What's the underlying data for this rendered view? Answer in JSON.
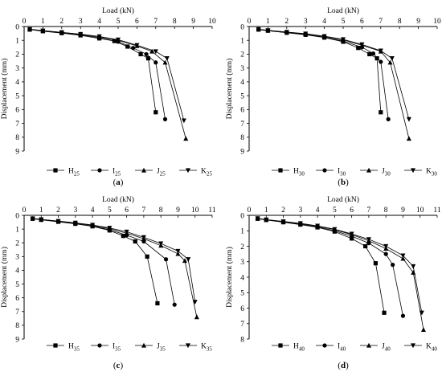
{
  "chart_data": [
    {
      "type": "line",
      "panel_label": "(a)",
      "xlabel": "Load (kN)",
      "ylabel": "Displacement (mm)",
      "x_axis_position": "top",
      "y_inverted": true,
      "xlim": [
        0,
        10
      ],
      "ylim": [
        0,
        9
      ],
      "xticks": [
        0,
        1,
        2,
        3,
        4,
        5,
        6,
        7,
        8,
        9,
        10
      ],
      "yticks": [
        0,
        1,
        2,
        3,
        4,
        5,
        6,
        7,
        8,
        9
      ],
      "legend_position": "bottom",
      "series": [
        {
          "name": "H",
          "subscript": "25",
          "marker": "square",
          "points": [
            [
              0.3,
              0.22
            ],
            [
              1.0,
              0.34
            ],
            [
              2.0,
              0.48
            ],
            [
              3.0,
              0.64
            ],
            [
              4.0,
              0.86
            ],
            [
              4.8,
              1.05
            ],
            [
              5.5,
              1.45
            ],
            [
              6.2,
              2.0
            ],
            [
              6.6,
              2.3
            ],
            [
              7.0,
              6.2
            ]
          ]
        },
        {
          "name": "I",
          "subscript": "25",
          "marker": "circle",
          "points": [
            [
              0.3,
              0.22
            ],
            [
              1.0,
              0.33
            ],
            [
              2.0,
              0.46
            ],
            [
              3.0,
              0.6
            ],
            [
              4.0,
              0.8
            ],
            [
              5.0,
              1.1
            ],
            [
              5.8,
              1.55
            ],
            [
              6.5,
              2.0
            ],
            [
              7.0,
              2.6
            ],
            [
              7.5,
              6.7
            ]
          ]
        },
        {
          "name": "J",
          "subscript": "25",
          "marker": "triangle-up",
          "points": [
            [
              0.3,
              0.2
            ],
            [
              1.0,
              0.3
            ],
            [
              2.0,
              0.43
            ],
            [
              3.0,
              0.56
            ],
            [
              4.0,
              0.74
            ],
            [
              5.0,
              1.0
            ],
            [
              6.0,
              1.4
            ],
            [
              6.8,
              1.8
            ],
            [
              7.5,
              2.6
            ],
            [
              8.6,
              8.1
            ]
          ]
        },
        {
          "name": "K",
          "subscript": "25",
          "marker": "triangle-down",
          "points": [
            [
              0.3,
              0.2
            ],
            [
              1.0,
              0.3
            ],
            [
              2.0,
              0.42
            ],
            [
              3.0,
              0.55
            ],
            [
              4.0,
              0.72
            ],
            [
              5.0,
              0.95
            ],
            [
              6.0,
              1.35
            ],
            [
              7.0,
              1.8
            ],
            [
              7.6,
              2.3
            ],
            [
              8.5,
              6.8
            ]
          ]
        }
      ]
    },
    {
      "type": "line",
      "panel_label": "(b)",
      "xlabel": "Load (kN)",
      "ylabel": "Displacement (mm)",
      "x_axis_position": "top",
      "y_inverted": true,
      "xlim": [
        0,
        10
      ],
      "ylim": [
        0,
        9
      ],
      "xticks": [
        0,
        1,
        2,
        3,
        4,
        5,
        6,
        7,
        8,
        9,
        10
      ],
      "yticks": [
        0,
        1,
        2,
        3,
        4,
        5,
        6,
        7,
        8,
        9
      ],
      "legend_position": "bottom",
      "series": [
        {
          "name": "H",
          "subscript": "30",
          "marker": "square",
          "points": [
            [
              0.5,
              0.22
            ],
            [
              1.0,
              0.3
            ],
            [
              2.0,
              0.45
            ],
            [
              3.0,
              0.6
            ],
            [
              4.0,
              0.8
            ],
            [
              5.0,
              1.1
            ],
            [
              5.8,
              1.55
            ],
            [
              6.4,
              2.0
            ],
            [
              6.8,
              2.3
            ],
            [
              7.0,
              6.2
            ]
          ]
        },
        {
          "name": "I",
          "subscript": "30",
          "marker": "circle",
          "points": [
            [
              0.5,
              0.22
            ],
            [
              1.0,
              0.3
            ],
            [
              2.0,
              0.44
            ],
            [
              3.0,
              0.58
            ],
            [
              4.0,
              0.77
            ],
            [
              5.0,
              1.05
            ],
            [
              6.0,
              1.5
            ],
            [
              6.6,
              1.95
            ],
            [
              7.0,
              2.55
            ],
            [
              7.4,
              6.7
            ]
          ]
        },
        {
          "name": "J",
          "subscript": "30",
          "marker": "triangle-up",
          "points": [
            [
              0.5,
              0.2
            ],
            [
              1.0,
              0.28
            ],
            [
              2.0,
              0.41
            ],
            [
              3.0,
              0.54
            ],
            [
              4.0,
              0.72
            ],
            [
              5.0,
              0.97
            ],
            [
              6.0,
              1.35
            ],
            [
              7.0,
              1.8
            ],
            [
              7.5,
              2.6
            ],
            [
              8.5,
              8.1
            ]
          ]
        },
        {
          "name": "K",
          "subscript": "30",
          "marker": "triangle-down",
          "points": [
            [
              0.5,
              0.2
            ],
            [
              1.0,
              0.28
            ],
            [
              2.0,
              0.4
            ],
            [
              3.0,
              0.52
            ],
            [
              4.0,
              0.7
            ],
            [
              5.0,
              0.93
            ],
            [
              6.0,
              1.3
            ],
            [
              7.0,
              1.75
            ],
            [
              7.6,
              2.3
            ],
            [
              8.5,
              6.7
            ]
          ]
        }
      ]
    },
    {
      "type": "line",
      "panel_label": "(c)",
      "xlabel": "Load (kN)",
      "ylabel": "Displacement (mm)",
      "x_axis_position": "top",
      "y_inverted": true,
      "xlim": [
        0,
        11
      ],
      "ylim": [
        0,
        9
      ],
      "xticks": [
        0,
        1,
        2,
        3,
        4,
        5,
        6,
        7,
        8,
        9,
        10,
        11
      ],
      "yticks": [
        0,
        1,
        2,
        3,
        4,
        5,
        6,
        7,
        8,
        9
      ],
      "legend_position": "bottom",
      "series": [
        {
          "name": "H",
          "subscript": "35",
          "marker": "square",
          "points": [
            [
              0.5,
              0.25
            ],
            [
              1.0,
              0.33
            ],
            [
              2.0,
              0.47
            ],
            [
              3.0,
              0.62
            ],
            [
              4.0,
              0.8
            ],
            [
              5.0,
              1.1
            ],
            [
              5.8,
              1.5
            ],
            [
              6.5,
              1.9
            ],
            [
              7.2,
              3.0
            ],
            [
              7.8,
              6.4
            ]
          ]
        },
        {
          "name": "I",
          "subscript": "35",
          "marker": "circle",
          "points": [
            [
              0.5,
              0.25
            ],
            [
              1.0,
              0.32
            ],
            [
              2.0,
              0.45
            ],
            [
              3.0,
              0.6
            ],
            [
              4.0,
              0.78
            ],
            [
              5.0,
              1.05
            ],
            [
              6.0,
              1.45
            ],
            [
              7.0,
              1.9
            ],
            [
              8.3,
              3.2
            ],
            [
              8.8,
              6.5
            ]
          ]
        },
        {
          "name": "J",
          "subscript": "35",
          "marker": "triangle-up",
          "points": [
            [
              0.5,
              0.23
            ],
            [
              1.0,
              0.3
            ],
            [
              2.0,
              0.43
            ],
            [
              3.0,
              0.56
            ],
            [
              4.0,
              0.73
            ],
            [
              5.0,
              0.97
            ],
            [
              6.0,
              1.3
            ],
            [
              7.0,
              1.7
            ],
            [
              8.0,
              2.2
            ],
            [
              9.0,
              2.8
            ],
            [
              9.4,
              3.3
            ],
            [
              10.1,
              7.4
            ]
          ]
        },
        {
          "name": "K",
          "subscript": "35",
          "marker": "triangle-down",
          "points": [
            [
              0.5,
              0.23
            ],
            [
              1.0,
              0.3
            ],
            [
              2.0,
              0.42
            ],
            [
              3.0,
              0.55
            ],
            [
              4.0,
              0.7
            ],
            [
              5.0,
              0.92
            ],
            [
              6.0,
              1.2
            ],
            [
              7.0,
              1.6
            ],
            [
              8.0,
              2.05
            ],
            [
              9.0,
              2.6
            ],
            [
              9.6,
              3.2
            ],
            [
              10.0,
              6.3
            ]
          ]
        }
      ]
    },
    {
      "type": "line",
      "panel_label": "(d)",
      "xlabel": "Load (kN)",
      "ylabel": "Displacement (mm)",
      "x_axis_position": "top",
      "y_inverted": true,
      "xlim": [
        0,
        11
      ],
      "ylim": [
        0,
        8
      ],
      "xticks": [
        0,
        1,
        2,
        3,
        4,
        5,
        6,
        7,
        8,
        9,
        10,
        11
      ],
      "yticks": [
        0,
        1,
        2,
        3,
        4,
        5,
        6,
        7,
        8
      ],
      "legend_position": "bottom",
      "series": [
        {
          "name": "H",
          "subscript": "40",
          "marker": "square",
          "points": [
            [
              0.5,
              0.22
            ],
            [
              1.0,
              0.3
            ],
            [
              2.0,
              0.45
            ],
            [
              3.0,
              0.6
            ],
            [
              4.0,
              0.78
            ],
            [
              5.0,
              1.05
            ],
            [
              6.0,
              1.5
            ],
            [
              6.8,
              2.0
            ],
            [
              7.4,
              3.1
            ],
            [
              7.9,
              6.3
            ]
          ]
        },
        {
          "name": "I",
          "subscript": "40",
          "marker": "circle",
          "points": [
            [
              0.5,
              0.22
            ],
            [
              1.0,
              0.3
            ],
            [
              2.0,
              0.43
            ],
            [
              3.0,
              0.58
            ],
            [
              4.0,
              0.75
            ],
            [
              5.0,
              1.0
            ],
            [
              6.0,
              1.35
            ],
            [
              7.0,
              1.8
            ],
            [
              8.0,
              2.5
            ],
            [
              8.4,
              3.2
            ],
            [
              9.0,
              6.5
            ]
          ]
        },
        {
          "name": "J",
          "subscript": "40",
          "marker": "triangle-up",
          "points": [
            [
              0.5,
              0.2
            ],
            [
              1.0,
              0.28
            ],
            [
              2.0,
              0.4
            ],
            [
              3.0,
              0.54
            ],
            [
              4.0,
              0.7
            ],
            [
              5.0,
              0.93
            ],
            [
              6.0,
              1.25
            ],
            [
              7.0,
              1.65
            ],
            [
              8.0,
              2.15
            ],
            [
              9.0,
              2.8
            ],
            [
              9.6,
              3.7
            ],
            [
              10.2,
              7.4
            ]
          ]
        },
        {
          "name": "K",
          "subscript": "40",
          "marker": "triangle-down",
          "points": [
            [
              0.5,
              0.2
            ],
            [
              1.0,
              0.28
            ],
            [
              2.0,
              0.4
            ],
            [
              3.0,
              0.52
            ],
            [
              4.0,
              0.68
            ],
            [
              5.0,
              0.9
            ],
            [
              6.0,
              1.2
            ],
            [
              7.0,
              1.55
            ],
            [
              8.0,
              2.0
            ],
            [
              9.0,
              2.6
            ],
            [
              9.6,
              3.3
            ],
            [
              10.1,
              6.3
            ]
          ]
        }
      ]
    }
  ]
}
